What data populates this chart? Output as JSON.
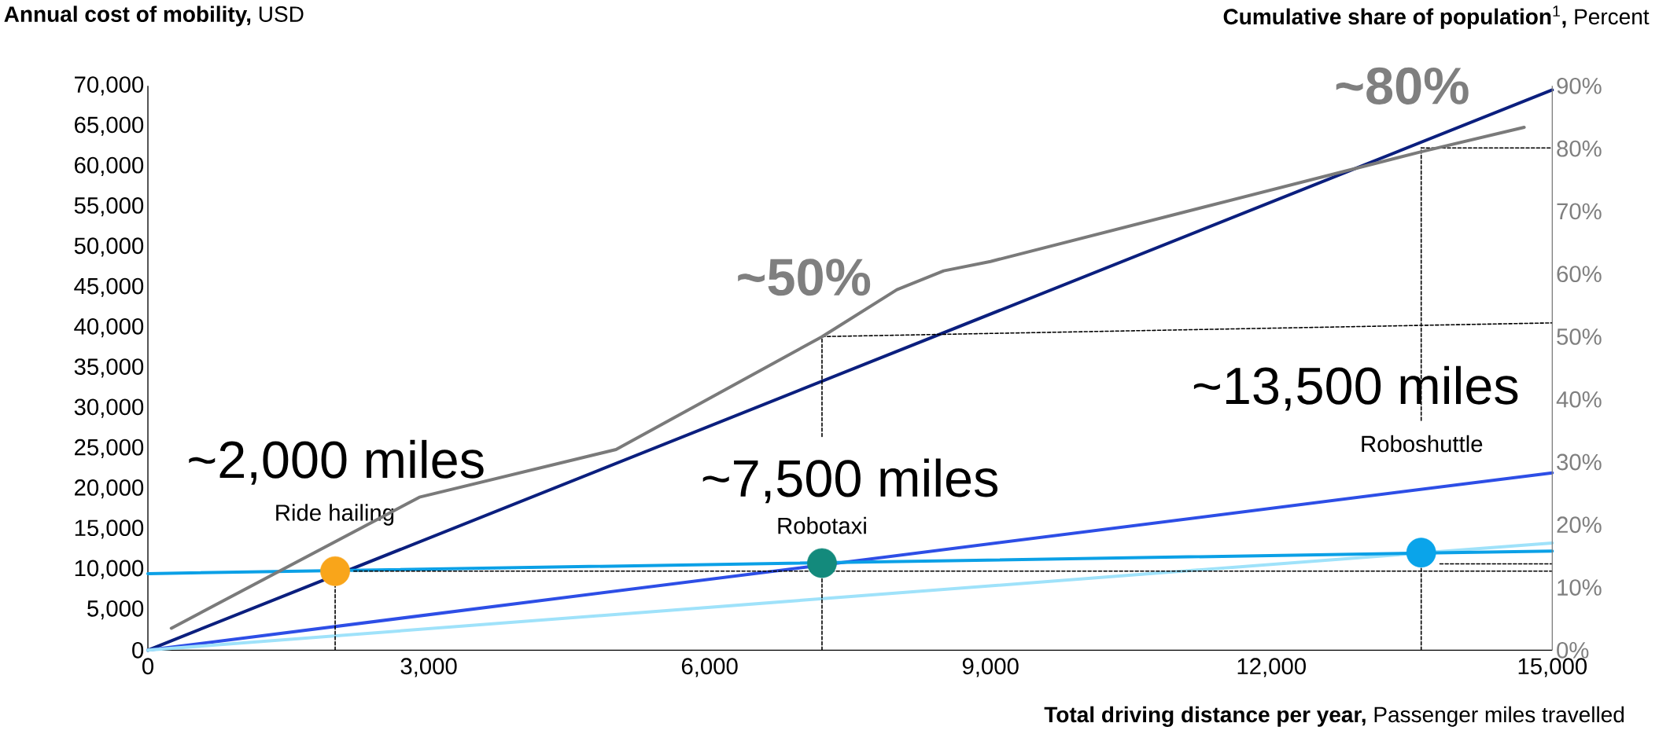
{
  "chart_data": {
    "type": "line",
    "xlabel": "**Total driving distance per year,** Passenger miles travelled",
    "ylabel": "**Annual cost of mobility,** USD",
    "y2label": "**Cumulative share of population**$^{1}$**,** Percent",
    "xlim": [
      0,
      15000
    ],
    "xticks": [
      0,
      {
        "value": 3000,
        "label": "3,000"
      },
      {
        "value": 6000,
        "label": "6,000"
      },
      {
        "value": 9000,
        "label": "9,000"
      },
      {
        "value": 12000,
        "label": "12,000"
      },
      {
        "value": 15000,
        "label": "15,000"
      }
    ],
    "ylim": [
      0,
      70000
    ],
    "yticks": [
      0,
      {
        "value": 5000,
        "label": "5,000"
      },
      {
        "value": 10000,
        "label": "10,000"
      },
      {
        "value": 15000,
        "label": "15,000"
      },
      {
        "value": 20000,
        "label": "20,000"
      },
      {
        "value": 25000,
        "label": "25,000"
      },
      {
        "value": 30000,
        "label": "30,000"
      },
      {
        "value": 35000,
        "label": "35,000"
      },
      {
        "value": 40000,
        "label": "40,000"
      },
      {
        "value": 45000,
        "label": "45,000"
      },
      {
        "value": 50000,
        "label": "50,000"
      },
      {
        "value": 55000,
        "label": "55,000"
      },
      {
        "value": 60000,
        "label": "60,000"
      },
      {
        "value": 65000,
        "label": "65,000"
      },
      {
        "value": 70000,
        "label": "70,000"
      }
    ],
    "y2lim": [
      0,
      90
    ],
    "y2ticks": [
      {
        "value": 0,
        "label": "0%"
      },
      {
        "value": 10,
        "label": "10%"
      },
      {
        "value": 20,
        "label": "20%"
      },
      {
        "value": 30,
        "label": "30%"
      },
      {
        "value": 40,
        "label": "40%"
      },
      {
        "value": 50,
        "label": "50%"
      },
      {
        "value": 60,
        "label": "60%"
      },
      {
        "value": 70,
        "label": "70%"
      },
      {
        "value": 80,
        "label": "80%"
      },
      {
        "value": 90,
        "label": "90%"
      }
    ],
    "series": [
      {
        "color": "#0b1f7e",
        "x": [
          0,
          15000
        ],
        "values": [
          0,
          69500
        ]
      },
      {
        "color": "#2d4ee6",
        "x": [
          0,
          15000
        ],
        "values": [
          0,
          22000
        ]
      },
      {
        "color": "#9fe2fa",
        "x": [
          0,
          15000
        ],
        "values": [
          0,
          13300
        ]
      },
      {
        "color": "#0ba0e6",
        "x": [
          0,
          15000
        ],
        "values": [
          9500,
          12300
        ]
      },
      {
        "color": "#7a7a7a",
        "axis": "y2",
        "x": [
          250,
          2900,
          5000,
          7200,
          8000,
          8500,
          9000,
          13600,
          14700
        ],
        "values": [
          3.5,
          24.4,
          32,
          50,
          57.5,
          60.5,
          62,
          79.5,
          83.4
        ]
      },
      {
        "line_style": "dashed",
        "color": "#000000",
        "x": [
          2000,
          2000
        ],
        "values": [
          0,
          7900
        ]
      },
      {
        "line_style": "dashed",
        "color": "#000000",
        "x": [
          2200,
          15000
        ],
        "values": [
          9800,
          9800
        ]
      },
      {
        "line_style": "dashed",
        "color": "#000000",
        "x": [
          7200,
          7200
        ],
        "values": [
          0,
          8900
        ]
      },
      {
        "line_style": "dashed",
        "color": "#000000",
        "x": [
          7200,
          7200
        ],
        "values": [
          26500,
          38900
        ]
      },
      {
        "line_style": "dashed",
        "color": "#000000",
        "x": [
          7200,
          15000
        ],
        "values": [
          38900,
          40600
        ]
      },
      {
        "line_style": "dashed",
        "color": "#000000",
        "x": [
          13600,
          13600
        ],
        "values": [
          0,
          10200
        ]
      },
      {
        "line_style": "dashed",
        "color": "#000000",
        "x": [
          13600,
          13600
        ],
        "values": [
          28500,
          62300
        ]
      },
      {
        "line_style": "dashed",
        "color": "#000000",
        "x": [
          13600,
          15000
        ],
        "values": [
          62300,
          62300
        ]
      },
      {
        "line_style": "dashed",
        "color": "#000000",
        "x": [
          13800,
          15000
        ],
        "values": [
          10700,
          10700
        ]
      },
      {
        "type": "scatter",
        "marker": "circle",
        "color": "#f9a51a",
        "x": [
          2000
        ],
        "values": [
          9800
        ]
      },
      {
        "type": "scatter",
        "marker": "circle",
        "color": "#138a7c",
        "x": [
          7200
        ],
        "values": [
          10800
        ]
      },
      {
        "type": "scatter",
        "marker": "circle",
        "color": "#0aa4ea",
        "x": [
          13600
        ],
        "values": [
          12100
        ]
      }
    ],
    "annotations": [
      "~2,000 miles",
      "Ride hailing",
      "~7,500 miles",
      "Robotaxi",
      "~13,500 miles",
      "Roboshuttle",
      "~50%",
      "~80%"
    ]
  }
}
